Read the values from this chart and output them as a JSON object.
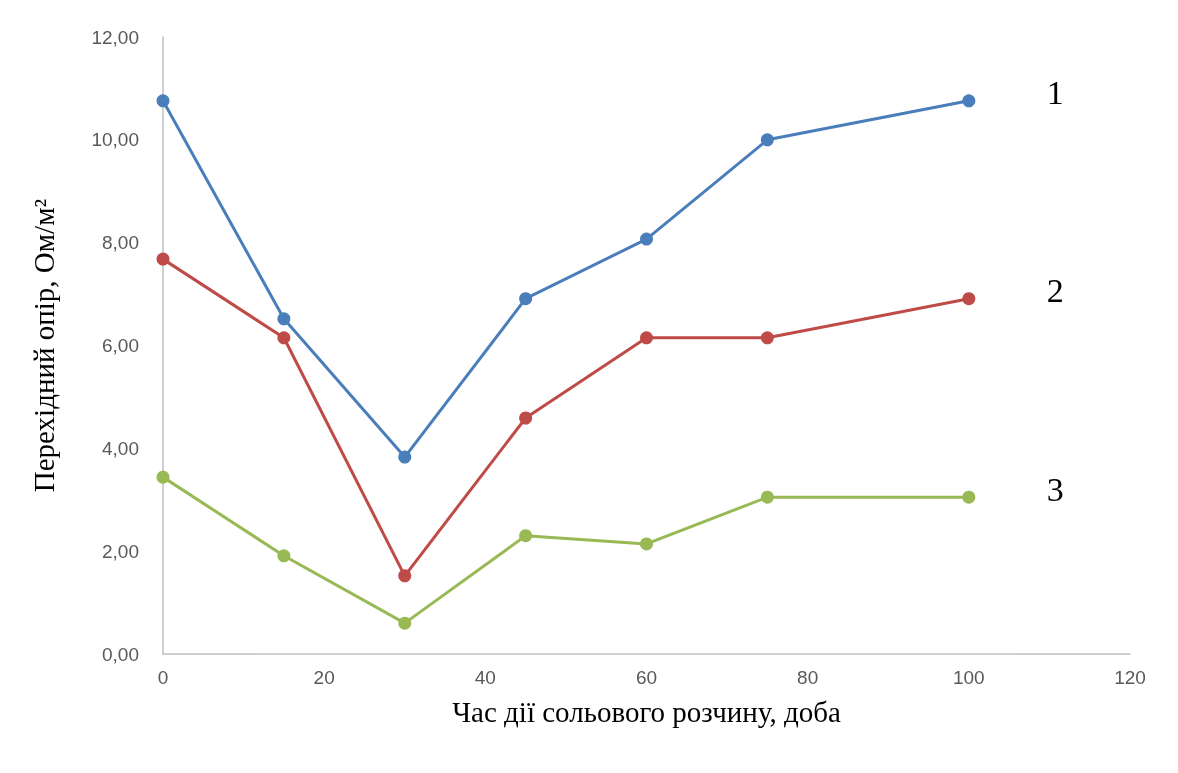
{
  "chart_data": {
    "type": "line",
    "xlabel": "Час дії сольового розчину, доба",
    "ylabel": "Перехідний опір, Ом/м²",
    "x": [
      0,
      15,
      30,
      45,
      60,
      75,
      100
    ],
    "series": [
      {
        "name": "1",
        "color": "#4a7ebb",
        "values": [
          10.76,
          6.52,
          3.83,
          6.91,
          8.07,
          10.0,
          10.76
        ]
      },
      {
        "name": "2",
        "color": "#be4b48",
        "values": [
          7.68,
          6.15,
          1.52,
          4.59,
          6.15,
          6.15,
          6.91
        ]
      },
      {
        "name": "3",
        "color": "#98b954",
        "values": [
          3.44,
          1.91,
          0.6,
          2.3,
          2.14,
          3.05,
          3.05
        ]
      }
    ],
    "xlim": [
      0,
      120
    ],
    "xticks": [
      0,
      20,
      40,
      60,
      80,
      100,
      120
    ],
    "ylim": [
      0,
      12
    ],
    "yticks": [
      {
        "value": 0,
        "label": "0,00"
      },
      {
        "value": 2,
        "label": "2,00"
      },
      {
        "value": 4,
        "label": "4,00"
      },
      {
        "value": 6,
        "label": "6,00"
      },
      {
        "value": 8,
        "label": "8,00"
      },
      {
        "value": 10,
        "label": "10,00"
      },
      {
        "value": 12,
        "label": "12,00"
      }
    ],
    "grid": false,
    "legend": false,
    "marker": "circle",
    "line_style": "solid"
  }
}
